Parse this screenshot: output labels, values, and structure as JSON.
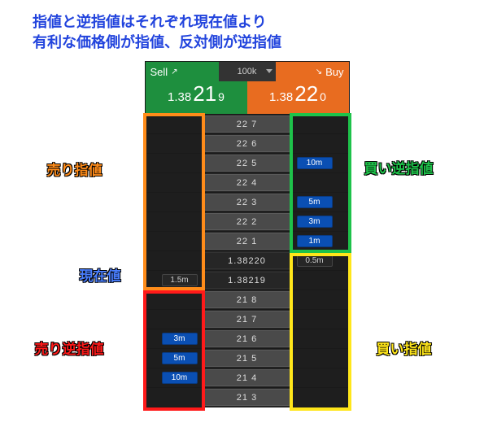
{
  "title_line1": "指値と逆指値はそれぞれ現在値より",
  "title_line2": "有利な価格側が指値、反対側が逆指値",
  "header": {
    "sell": "Sell",
    "qty": "100k",
    "buy": "Buy"
  },
  "price_sell": {
    "main": "1.38",
    "big": "21",
    "pip": "9"
  },
  "price_buy": {
    "main": "1.38",
    "big": "22",
    "pip": "0"
  },
  "rows": [
    {
      "l": "",
      "c": "22 7",
      "r": "",
      "rcls": ""
    },
    {
      "l": "",
      "c": "22 6",
      "r": "",
      "rcls": ""
    },
    {
      "l": "",
      "c": "22 5",
      "r": "10m",
      "rcls": "blue"
    },
    {
      "l": "",
      "c": "22 4",
      "r": "",
      "rcls": ""
    },
    {
      "l": "",
      "c": "22 3",
      "r": "5m",
      "rcls": "blue"
    },
    {
      "l": "",
      "c": "22 2",
      "r": "3m",
      "rcls": "blue"
    },
    {
      "l": "",
      "c": "22 1",
      "r": "1m",
      "rcls": "blue"
    },
    {
      "l": "",
      "c": "1.38220",
      "r": "0.5m",
      "rcls": "dark",
      "cur": true
    },
    {
      "l": "1.5m",
      "c": "1.38219",
      "r": "",
      "rcls": "",
      "cur": true,
      "lcls": "dark"
    },
    {
      "l": "",
      "c": "21 8",
      "r": "",
      "rcls": ""
    },
    {
      "l": "",
      "c": "21 7",
      "r": "",
      "rcls": ""
    },
    {
      "l": "3m",
      "c": "21 6",
      "r": "",
      "rcls": "",
      "lcls": "blue"
    },
    {
      "l": "5m",
      "c": "21 5",
      "r": "",
      "rcls": "",
      "lcls": "blue"
    },
    {
      "l": "10m",
      "c": "21 4",
      "r": "",
      "rcls": "",
      "lcls": "blue"
    },
    {
      "l": "",
      "c": "21 3",
      "r": "",
      "rcls": ""
    }
  ],
  "boxes": {
    "sell_limit": {
      "color": "#ff8c1a",
      "label": "売り指値",
      "labelColor": "#ff8c1a"
    },
    "buy_stop": {
      "color": "#1ec24a",
      "label": "買い逆指値",
      "labelColor": "#1ec24a"
    },
    "current": {
      "label": "現在値",
      "labelColor": "#4a7fff"
    },
    "sell_stop": {
      "color": "#ff1a1a",
      "label": "売り逆指値",
      "labelColor": "#ff1a1a"
    },
    "buy_limit": {
      "color": "#ffe61a",
      "label": "買い指値",
      "labelColor": "#ffe61a"
    }
  }
}
